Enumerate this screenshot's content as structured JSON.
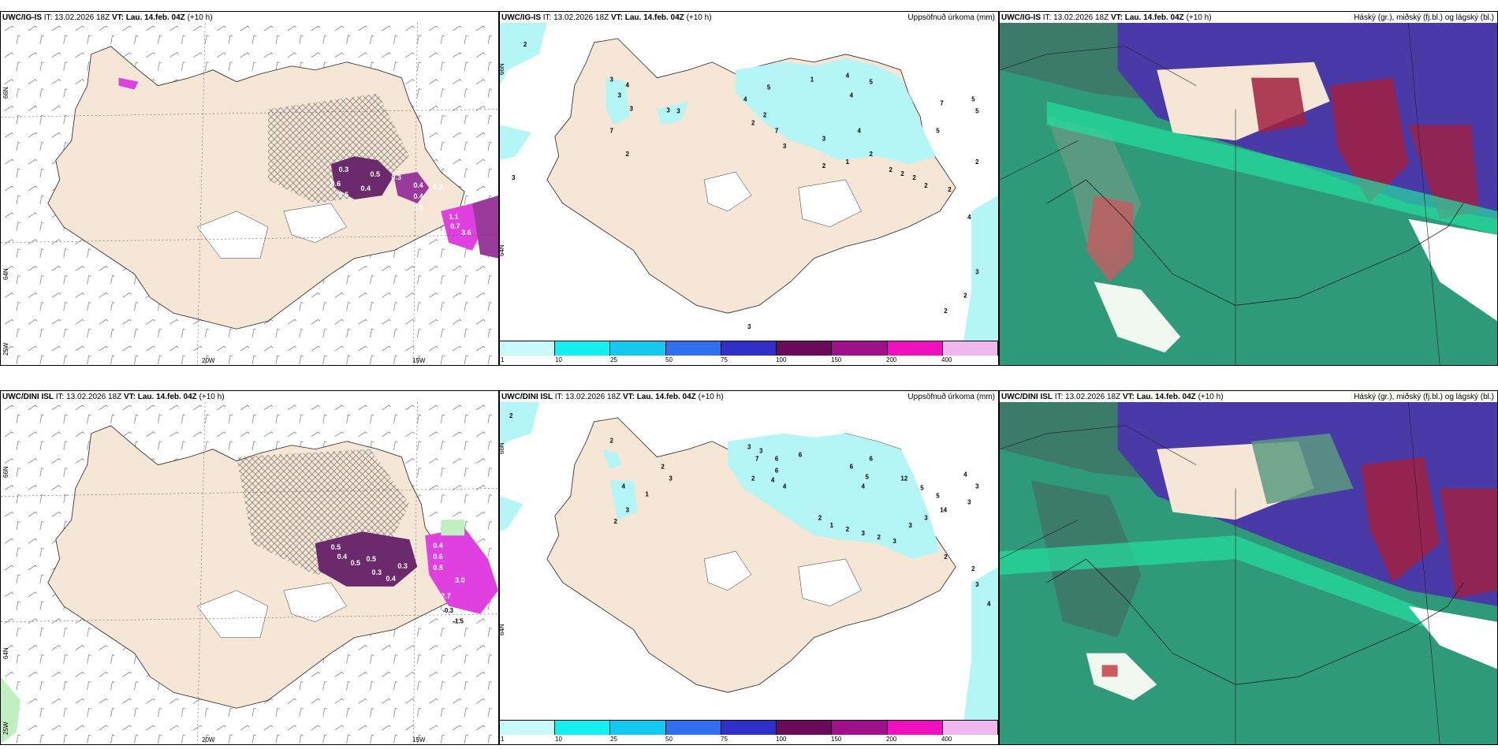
{
  "colors": {
    "land": "#f5e6d6",
    "snow": "#ffffff",
    "precip_light": "#b4f5f5",
    "purple_dark": "#6b2a6b",
    "purple_mid": "#9a3a9a",
    "magenta": "#e040e0",
    "cloud_green": "#2f9a7a",
    "cloud_bright": "#22e0a0",
    "cloud_blue": "#4a3aa8",
    "cloud_red": "#a02040"
  },
  "rows": [
    {
      "wind": {
        "model": "UWC/IG-IS",
        "it_label": "IT:",
        "it_value": "13.02.2026 18Z",
        "vt_label": "VT: Lau. 14.feb. 04Z",
        "lead": "(+10 h)",
        "lat_labels": [
          "66N",
          "64N",
          "25W"
        ],
        "lon_labels": [
          "20W",
          "15W"
        ],
        "values": [
          "0.3",
          "0.6",
          "0.5",
          "0.4",
          "0.5",
          "0.3",
          "0.4",
          "0.4",
          "0.2",
          "0.5",
          "1.1",
          "0.7",
          "3.6"
        ]
      },
      "precip": {
        "model": "UWC/IG-IS",
        "it_label": "IT:",
        "it_value": "13.02.2026 18Z",
        "vt_label": "VT: Lau. 14.feb. 04Z",
        "lead": "(+10 h)",
        "title": "Uppsöfnuð úrkoma (mm)",
        "lat_labels": [
          "66N",
          "64N"
        ],
        "values": [
          "2",
          "3",
          "3",
          "4",
          "3",
          "3",
          "7",
          "2",
          "3",
          "3",
          "4",
          "2",
          "5",
          "2",
          "7",
          "3",
          "1",
          "4",
          "4",
          "5",
          "3",
          "7",
          "5",
          "5",
          "4",
          "5",
          "2",
          "1",
          "2",
          "2",
          "2",
          "2",
          "2",
          "2",
          "2",
          "4",
          "3",
          "2",
          "2",
          "3"
        ]
      },
      "cloud": {
        "model": "UWC/IG-IS",
        "it_label": "IT:",
        "it_value": "13.02.2026 18Z",
        "vt_label": "VT: Lau. 14.feb. 04Z",
        "lead": "(+10 h)",
        "title": "Háský (gr.), miðský (fj.bl.) og lágský (bl.)"
      }
    },
    {
      "wind": {
        "model": "UWC/DINI ISL",
        "it_label": "IT:",
        "it_value": "13.02.2026 18Z",
        "vt_label": "VT: Lau. 14.feb. 04Z",
        "lead": "(+10 h)",
        "lat_labels": [
          "66N",
          "64N",
          "25W"
        ],
        "lon_labels": [
          "20W",
          "15W"
        ],
        "values": [
          "0.5",
          "0.4",
          "0.5",
          "0.5",
          "0.3",
          "0.4",
          "0.3",
          "0.4",
          "0.6",
          "0.8",
          "3.0",
          "2.7",
          "-0.3",
          "-1.5"
        ]
      },
      "precip": {
        "model": "UWC/DINI ISL",
        "it_label": "IT:",
        "it_value": "13.02.2026 18Z",
        "vt_label": "VT: Lau. 14.feb. 04Z",
        "lead": "(+10 h)",
        "title": "Uppsöfnuð úrkoma (mm)",
        "lat_labels": [
          "66N",
          "64N"
        ],
        "values": [
          "2",
          "2",
          "4",
          "3",
          "2",
          "1",
          "2",
          "3",
          "3",
          "7",
          "6",
          "6",
          "3",
          "2",
          "4",
          "4",
          "6",
          "6",
          "5",
          "6",
          "4",
          "12",
          "5",
          "5",
          "4",
          "3",
          "2",
          "1",
          "2",
          "3",
          "2",
          "3",
          "3",
          "3",
          "2",
          "3",
          "14",
          "2",
          "3",
          "4"
        ]
      },
      "cloud": {
        "model": "UWC/DINI ISL",
        "it_label": "IT:",
        "it_value": "13.02.2026 18Z",
        "vt_label": "VT: Lau. 14.feb. 04Z",
        "lead": "(+10 h)",
        "title": "Háský (gr.), miðský (fj.bl.) og lágský (bl.)"
      }
    }
  ],
  "legend": {
    "ticks": [
      "1",
      "10",
      "25",
      "50",
      "75",
      "100",
      "150",
      "200",
      "400"
    ],
    "colors": [
      "#c8fafa",
      "#14f0f0",
      "#14c8f0",
      "#3070f0",
      "#3030c8",
      "#6a0a5a",
      "#a0108a",
      "#f010c0",
      "#f0b8f0"
    ]
  }
}
